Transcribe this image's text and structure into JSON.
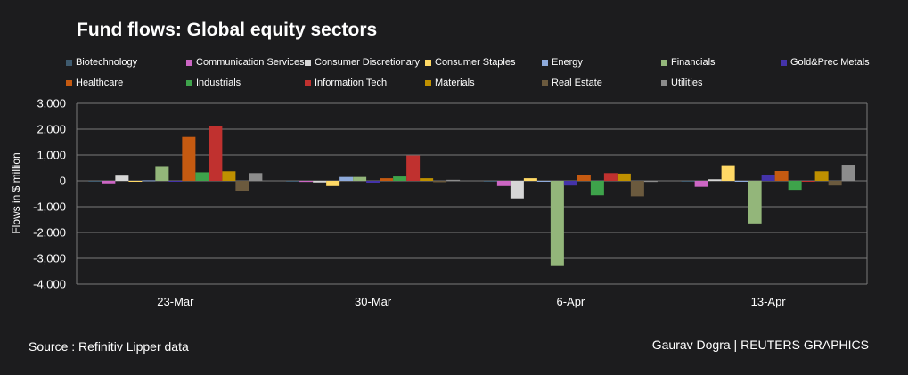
{
  "chart_data": {
    "type": "bar",
    "title": "Fund flows: Global equity sectors",
    "ylabel": "Flows in $ million",
    "xlabel": "",
    "ylim": [
      -4000,
      3000
    ],
    "yticks": [
      3000,
      2000,
      1000,
      0,
      -1000,
      -2000,
      -3000,
      -4000
    ],
    "ytick_labels": [
      "3,000",
      "2,000",
      "1,000",
      "0",
      "-1,000",
      "-2,000",
      "-3,000",
      "-4,000"
    ],
    "grid": true,
    "legend_position": "top",
    "categories": [
      "23-Mar",
      "30-Mar",
      "6-Apr",
      "13-Apr"
    ],
    "series": [
      {
        "name": "Biotechnology",
        "color": "#3e5a6e",
        "values": [
          -20,
          -20,
          -30,
          -30
        ]
      },
      {
        "name": "Communication Services",
        "color": "#cc66c4",
        "values": [
          -130,
          -40,
          -200,
          -230
        ]
      },
      {
        "name": "Consumer Discretionary",
        "color": "#d6d6d6",
        "values": [
          200,
          -60,
          -680,
          60
        ]
      },
      {
        "name": "Consumer Staples",
        "color": "#ffd966",
        "values": [
          -30,
          -200,
          100,
          600
        ]
      },
      {
        "name": "Energy",
        "color": "#8eaadb",
        "values": [
          20,
          150,
          -20,
          -20
        ]
      },
      {
        "name": "Financials",
        "color": "#93b67a",
        "values": [
          570,
          150,
          -3300,
          -1650
        ]
      },
      {
        "name": "Gold&Prec Metals",
        "color": "#4433aa",
        "values": [
          -20,
          -100,
          -180,
          220
        ]
      },
      {
        "name": "Healthcare",
        "color": "#c55a11",
        "values": [
          1700,
          100,
          220,
          380
        ]
      },
      {
        "name": "Industrials",
        "color": "#3ea34b",
        "values": [
          330,
          170,
          -560,
          -350
        ]
      },
      {
        "name": "Information Tech",
        "color": "#c0312f",
        "values": [
          2120,
          980,
          300,
          -30
        ]
      },
      {
        "name": "Materials",
        "color": "#bf9000",
        "values": [
          370,
          100,
          280,
          370
        ]
      },
      {
        "name": "Real Estate",
        "color": "#6b5a3e",
        "values": [
          -380,
          -50,
          -600,
          -180
        ]
      },
      {
        "name": "Utilities",
        "color": "#8c8c8c",
        "values": [
          300,
          40,
          -40,
          620
        ]
      }
    ]
  },
  "footer": {
    "source": "Source : Refinitiv Lipper data",
    "credit": "Gaurav Dogra | REUTERS GRAPHICS"
  },
  "colors": {
    "background": "#1c1c1e",
    "grid": "#7a7a7a",
    "text": "#ffffff"
  }
}
